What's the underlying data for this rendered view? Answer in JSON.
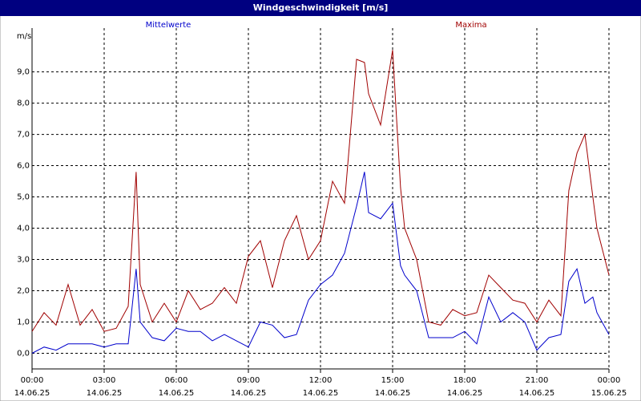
{
  "chart_data": {
    "type": "line",
    "title": "Windgeschwindigkeit [m/s]",
    "y_unit": "m/s",
    "x": [
      0,
      0.5,
      1,
      1.5,
      2,
      2.5,
      3,
      3.5,
      4,
      4.33,
      4.5,
      5,
      5.5,
      6,
      6.5,
      7,
      7.5,
      8,
      8.5,
      9,
      9.5,
      10,
      10.5,
      11,
      11.5,
      12,
      12.5,
      13,
      13.5,
      13.83,
      14,
      14.5,
      15,
      15.33,
      15.5,
      16,
      16.5,
      17,
      17.5,
      18,
      18.5,
      19,
      19.5,
      20,
      20.5,
      21,
      21.5,
      22,
      22.33,
      22.67,
      23,
      23.33,
      23.5,
      24
    ],
    "series": [
      {
        "name": "Mittelwerte",
        "color": "#0000cc",
        "values": [
          0.0,
          0.2,
          0.1,
          0.3,
          0.3,
          0.3,
          0.2,
          0.3,
          0.3,
          2.7,
          1.0,
          0.5,
          0.4,
          0.8,
          0.7,
          0.7,
          0.4,
          0.6,
          0.4,
          0.2,
          1.0,
          0.9,
          0.5,
          0.6,
          1.7,
          2.2,
          2.5,
          3.2,
          4.7,
          5.8,
          4.5,
          4.3,
          4.8,
          2.8,
          2.5,
          2.0,
          0.5,
          0.5,
          0.5,
          0.7,
          0.3,
          1.8,
          1.0,
          1.3,
          1.0,
          0.1,
          0.5,
          0.6,
          2.3,
          2.7,
          1.6,
          1.8,
          1.3,
          0.6
        ]
      },
      {
        "name": "Maxima",
        "color": "#a00000",
        "values": [
          0.7,
          1.3,
          0.9,
          2.2,
          0.9,
          1.4,
          0.7,
          0.8,
          1.5,
          5.8,
          2.2,
          1.0,
          1.6,
          1.0,
          2.0,
          1.4,
          1.6,
          2.1,
          1.6,
          3.1,
          3.6,
          2.1,
          3.6,
          4.4,
          3.0,
          3.6,
          5.5,
          4.8,
          9.4,
          9.3,
          8.3,
          7.3,
          9.7,
          5.3,
          4.0,
          3.0,
          1.0,
          0.9,
          1.4,
          1.2,
          1.3,
          2.5,
          2.1,
          1.7,
          1.6,
          1.0,
          1.7,
          1.2,
          5.2,
          6.4,
          7.0,
          5.0,
          4.0,
          2.5
        ]
      }
    ],
    "xlim": [
      0,
      24
    ],
    "xticks": [
      {
        "value": 0,
        "label": "00:00"
      },
      {
        "value": 3,
        "label": "03:00"
      },
      {
        "value": 6,
        "label": "06:00"
      },
      {
        "value": 9,
        "label": "09:00"
      },
      {
        "value": 12,
        "label": "12:00"
      },
      {
        "value": 15,
        "label": "15:00"
      },
      {
        "value": 18,
        "label": "18:00"
      },
      {
        "value": 21,
        "label": "21:00"
      },
      {
        "value": 24,
        "label": "00:00"
      }
    ],
    "xtick_dates": [
      "14.06.25",
      "14.06.25",
      "14.06.25",
      "14.06.25",
      "14.06.25",
      "14.06.25",
      "14.06.25",
      "14.06.25",
      "15.06.25"
    ],
    "ylim": [
      -0.5,
      10.4
    ],
    "yticks": [
      {
        "value": 0,
        "label": "0,0"
      },
      {
        "value": 1,
        "label": "1,0"
      },
      {
        "value": 2,
        "label": "2,0"
      },
      {
        "value": 3,
        "label": "3,0"
      },
      {
        "value": 4,
        "label": "4,0"
      },
      {
        "value": 5,
        "label": "5,0"
      },
      {
        "value": 6,
        "label": "6,0"
      },
      {
        "value": 7,
        "label": "7,0"
      },
      {
        "value": 8,
        "label": "8,0"
      },
      {
        "value": 9,
        "label": "9,0"
      }
    ],
    "grid": true
  }
}
